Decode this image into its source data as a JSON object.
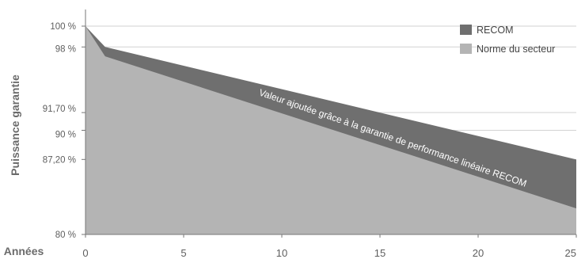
{
  "chart_data": {
    "type": "area",
    "ylabel": "Puissance garantie",
    "xlabel": "Années",
    "xlim": [
      0,
      25
    ],
    "ylim": [
      80,
      100
    ],
    "x_ticks": [
      "0",
      "5",
      "10",
      "15",
      "20",
      "25"
    ],
    "y_ticks": [
      {
        "value": 100,
        "label": "100 %"
      },
      {
        "value": 98,
        "label": "98 %"
      },
      {
        "value": 91.7,
        "label": "91,70 %"
      },
      {
        "value": 90,
        "label": "90 %"
      },
      {
        "value": 87.2,
        "label": "87,20 %"
      },
      {
        "value": 80,
        "label": "80 %"
      }
    ],
    "grid": true,
    "legend_position": "top-right",
    "series": [
      {
        "name": "RECOM",
        "color": "#6f6f6f",
        "x": [
          0,
          1,
          25
        ],
        "y": [
          100,
          98,
          87.2
        ]
      },
      {
        "name": "Norme du secteur",
        "color": "#b4b4b4",
        "x": [
          0,
          1,
          25
        ],
        "y": [
          100,
          97.1,
          82.5
        ]
      }
    ],
    "annotation": "Valeur ajoutée grâce à la garantie de performance linéaire RECOM"
  }
}
